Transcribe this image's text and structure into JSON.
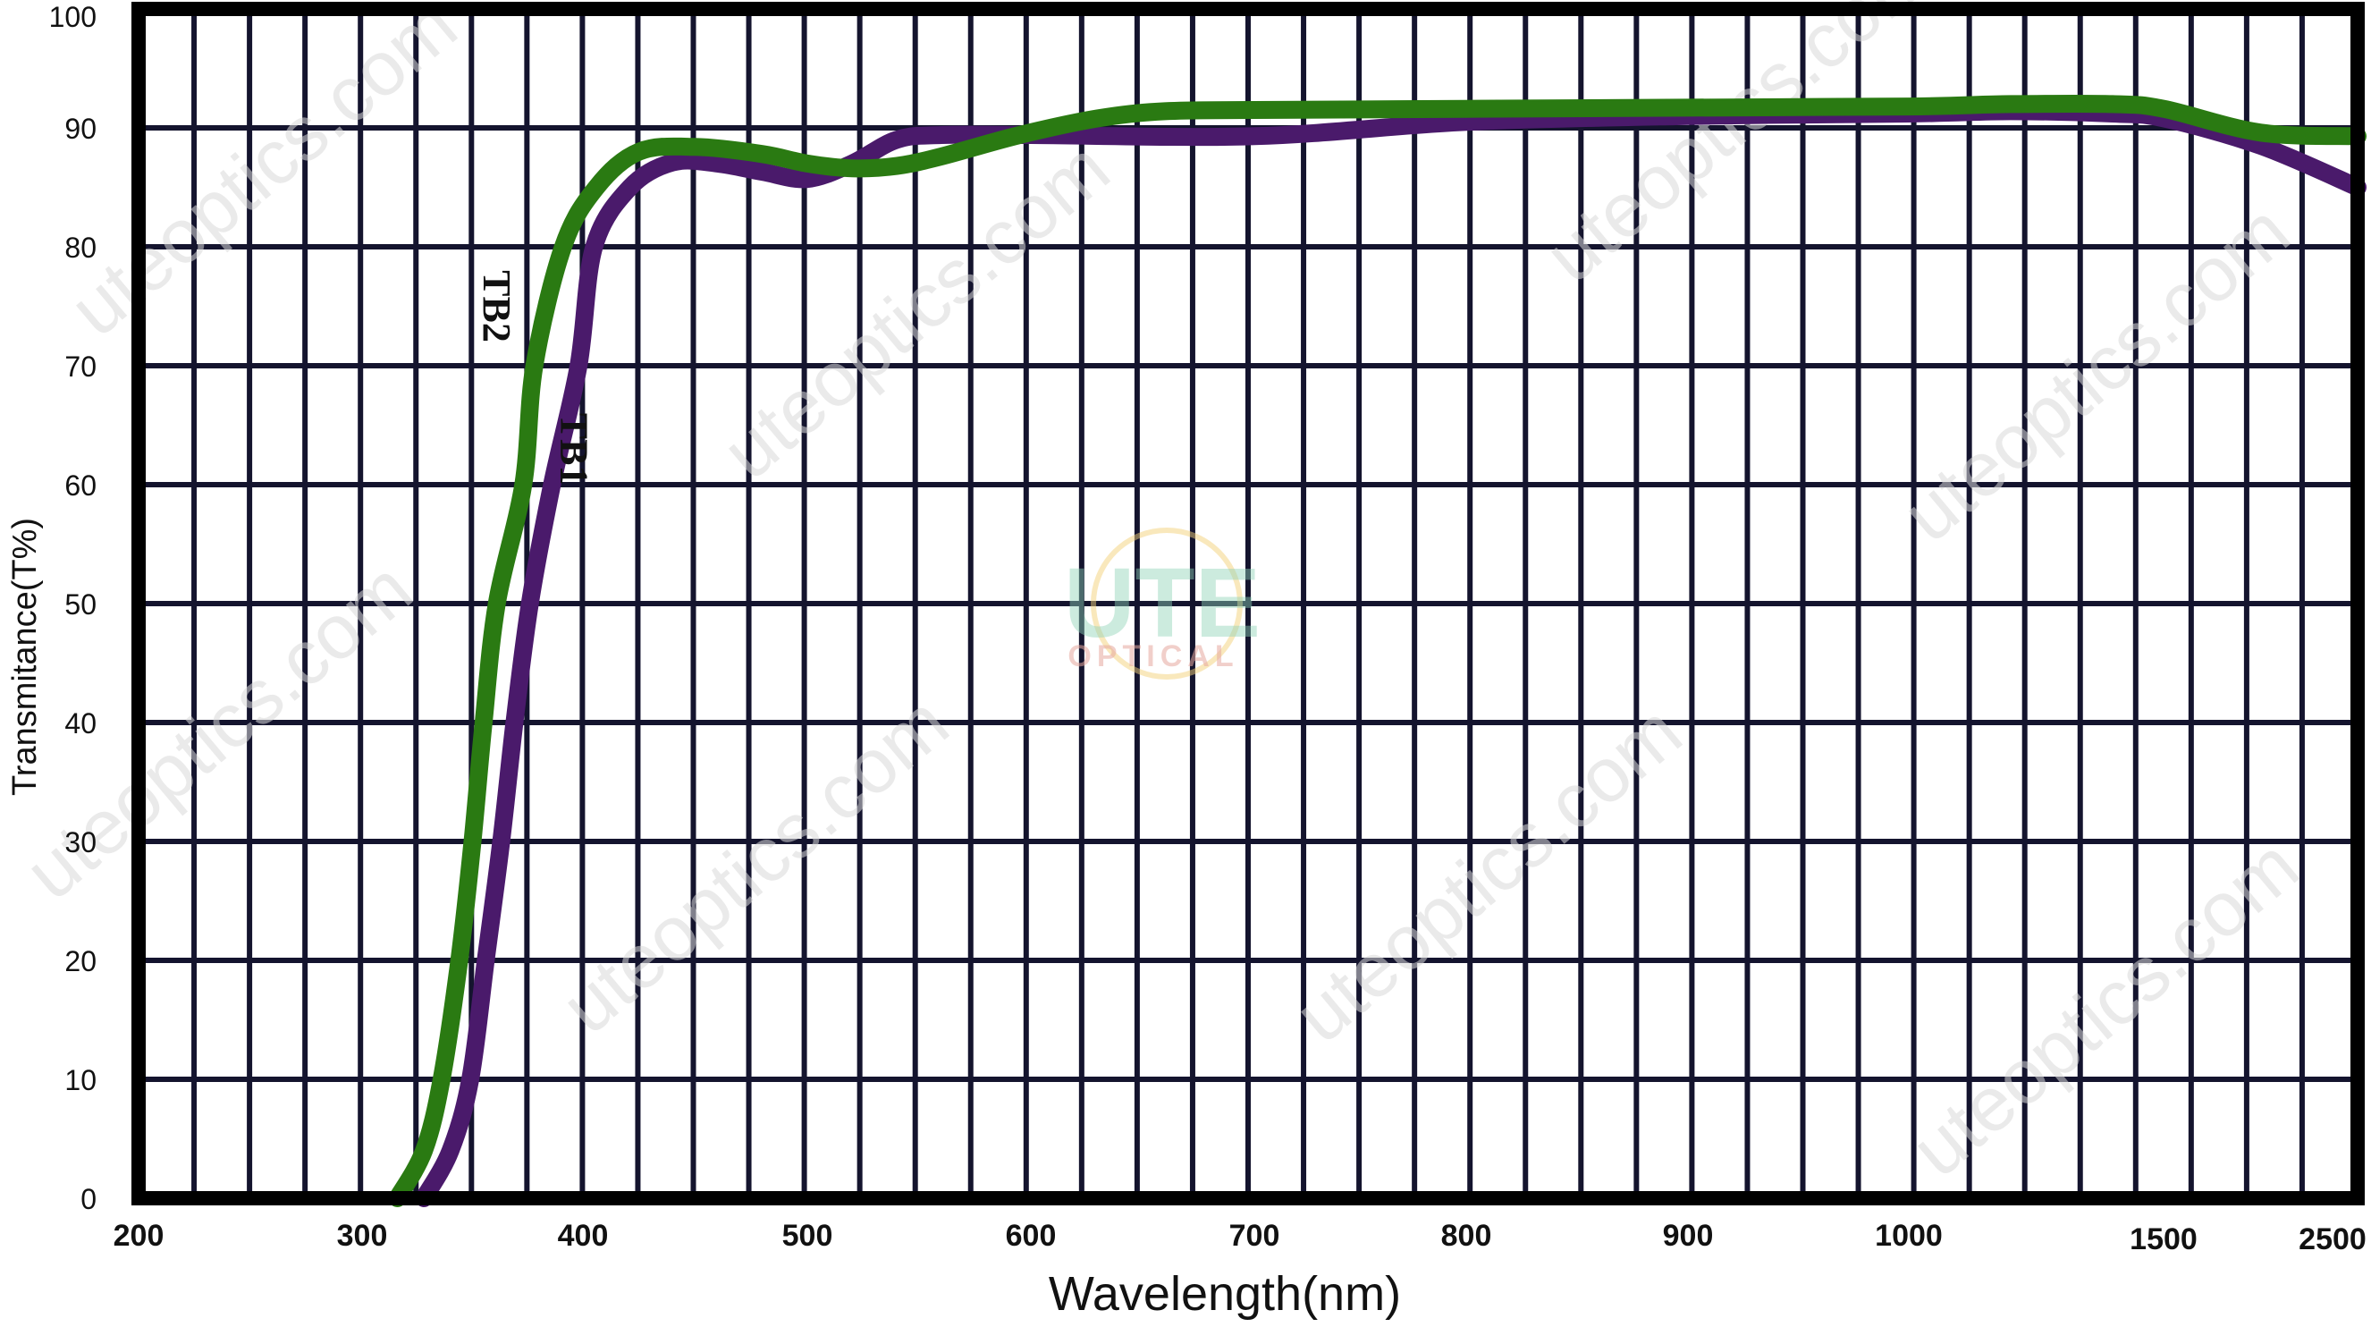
{
  "chart_data": {
    "type": "line",
    "title": "",
    "xlabel": "Wavelength(nm)",
    "ylabel": "Transmitance(T%)",
    "ylim": [
      0,
      100
    ],
    "xlim": [
      200,
      2500
    ],
    "x_scale_note": "piecewise: linear 200-1000, compressed 1000-1500-2500",
    "x_ticks": [
      "200",
      "300",
      "400",
      "500",
      "600",
      "700",
      "800",
      "900",
      "1000",
      "1500",
      "2500"
    ],
    "y_ticks": [
      "0",
      "10",
      "20",
      "30",
      "40",
      "50",
      "60",
      "70",
      "80",
      "90",
      "100"
    ],
    "grid": true,
    "legend": "inline labels",
    "series": [
      {
        "name": "TB1",
        "color": "#4a1a6b",
        "x": [
          328,
          340,
          349,
          356,
          363,
          369,
          376,
          386,
          398,
          405,
          421,
          440,
          460,
          480,
          500,
          520,
          540,
          560,
          600,
          700,
          800,
          900,
          1000,
          1200,
          1400,
          1500,
          2000,
          2500
        ],
        "y": [
          0,
          4,
          10,
          20,
          30,
          40,
          50,
          60,
          70,
          80,
          85,
          87.1,
          87.0,
          86.3,
          85.7,
          87.0,
          89.0,
          89.4,
          89.4,
          89.3,
          90.5,
          91.0,
          91.2,
          91.4,
          91.2,
          90.8,
          88.5,
          85.0
        ]
      },
      {
        "name": "TB2",
        "color": "#2a7a12",
        "x": [
          316,
          328,
          336,
          344,
          350,
          355,
          361,
          373,
          378,
          391,
          406,
          425,
          450,
          480,
          500,
          520,
          540,
          560,
          595,
          630,
          660,
          700,
          800,
          900,
          1000,
          1200,
          1400,
          1500,
          2000,
          2500
        ],
        "y": [
          0,
          4,
          10,
          20,
          30,
          40,
          50,
          60,
          70,
          80,
          85,
          88.0,
          88.4,
          87.8,
          87.0,
          86.6,
          86.8,
          87.6,
          89.4,
          90.8,
          91.4,
          91.5,
          91.6,
          91.7,
          91.8,
          92.0,
          92.0,
          91.6,
          89.6,
          89.3
        ]
      }
    ],
    "annotations": [
      {
        "text": "TB2",
        "x": 355,
        "y": 75,
        "rotation": 90
      },
      {
        "text": "TB1",
        "x": 390,
        "y": 63,
        "rotation": 90
      }
    ]
  },
  "watermark": {
    "text": "uteoptics.com",
    "logo_main": "UTE",
    "logo_sub": "OPTICAL"
  }
}
